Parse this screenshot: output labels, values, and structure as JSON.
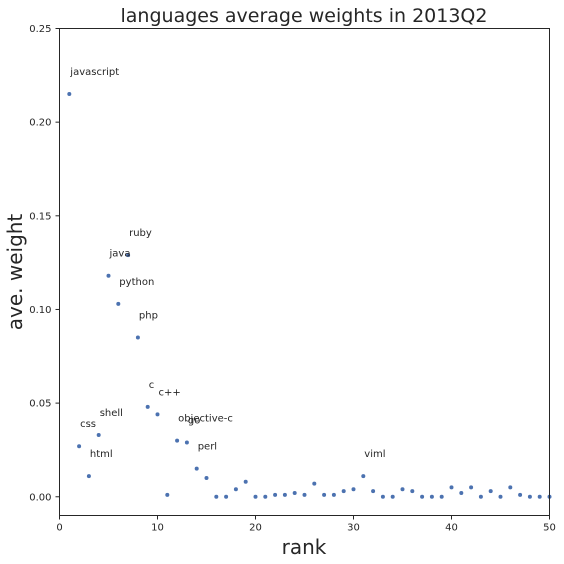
{
  "chart_data": {
    "type": "scatter",
    "title": "languages average weights in 2013Q2",
    "xlabel": "rank",
    "ylabel": "ave. weight",
    "xlim": [
      0,
      50
    ],
    "ylim": [
      -0.01,
      0.25
    ],
    "xticks": [
      0,
      10,
      20,
      30,
      40,
      50
    ],
    "xtick_labels": [
      "0",
      "10",
      "20",
      "30",
      "40",
      "50"
    ],
    "yticks": [
      0.0,
      0.05,
      0.1,
      0.15,
      0.2,
      0.25
    ],
    "ytick_labels": [
      "0.00",
      "0.05",
      "0.10",
      "0.15",
      "0.20",
      "0.25"
    ],
    "grid": false,
    "series_color": "#4c72b0",
    "points": [
      {
        "x": 1,
        "y": 0.215,
        "label": "javascript"
      },
      {
        "x": 2,
        "y": 0.027,
        "label": "css"
      },
      {
        "x": 3,
        "y": 0.011,
        "label": "html"
      },
      {
        "x": 4,
        "y": 0.033,
        "label": "shell"
      },
      {
        "x": 5,
        "y": 0.118,
        "label": "java"
      },
      {
        "x": 6,
        "y": 0.103,
        "label": "python"
      },
      {
        "x": 7,
        "y": 0.129,
        "label": "ruby"
      },
      {
        "x": 8,
        "y": 0.085,
        "label": "php"
      },
      {
        "x": 9,
        "y": 0.048,
        "label": "c"
      },
      {
        "x": 10,
        "y": 0.044,
        "label": "c++"
      },
      {
        "x": 11,
        "y": 0.001,
        "label": ""
      },
      {
        "x": 12,
        "y": 0.03,
        "label": "objective-c"
      },
      {
        "x": 13,
        "y": 0.029,
        "label": "go"
      },
      {
        "x": 14,
        "y": 0.015,
        "label": "perl"
      },
      {
        "x": 15,
        "y": 0.01,
        "label": ""
      },
      {
        "x": 16,
        "y": 0.0,
        "label": ""
      },
      {
        "x": 17,
        "y": 0.0,
        "label": ""
      },
      {
        "x": 18,
        "y": 0.004,
        "label": ""
      },
      {
        "x": 19,
        "y": 0.008,
        "label": ""
      },
      {
        "x": 20,
        "y": 0.0,
        "label": ""
      },
      {
        "x": 21,
        "y": 0.0,
        "label": ""
      },
      {
        "x": 22,
        "y": 0.001,
        "label": ""
      },
      {
        "x": 23,
        "y": 0.001,
        "label": ""
      },
      {
        "x": 24,
        "y": 0.002,
        "label": ""
      },
      {
        "x": 25,
        "y": 0.001,
        "label": ""
      },
      {
        "x": 26,
        "y": 0.007,
        "label": ""
      },
      {
        "x": 27,
        "y": 0.001,
        "label": ""
      },
      {
        "x": 28,
        "y": 0.001,
        "label": ""
      },
      {
        "x": 29,
        "y": 0.003,
        "label": ""
      },
      {
        "x": 30,
        "y": 0.004,
        "label": ""
      },
      {
        "x": 31,
        "y": 0.011,
        "label": "viml"
      },
      {
        "x": 32,
        "y": 0.003,
        "label": ""
      },
      {
        "x": 33,
        "y": 0.0,
        "label": ""
      },
      {
        "x": 34,
        "y": 0.0,
        "label": ""
      },
      {
        "x": 35,
        "y": 0.004,
        "label": ""
      },
      {
        "x": 36,
        "y": 0.003,
        "label": ""
      },
      {
        "x": 37,
        "y": 0.0,
        "label": ""
      },
      {
        "x": 38,
        "y": 0.0,
        "label": ""
      },
      {
        "x": 39,
        "y": 0.0,
        "label": ""
      },
      {
        "x": 40,
        "y": 0.005,
        "label": ""
      },
      {
        "x": 41,
        "y": 0.002,
        "label": ""
      },
      {
        "x": 42,
        "y": 0.005,
        "label": ""
      },
      {
        "x": 43,
        "y": 0.0,
        "label": ""
      },
      {
        "x": 44,
        "y": 0.003,
        "label": ""
      },
      {
        "x": 45,
        "y": 0.0,
        "label": ""
      },
      {
        "x": 46,
        "y": 0.005,
        "label": ""
      },
      {
        "x": 47,
        "y": 0.001,
        "label": ""
      },
      {
        "x": 48,
        "y": 0.0,
        "label": ""
      },
      {
        "x": 49,
        "y": 0.0,
        "label": ""
      },
      {
        "x": 50,
        "y": 0.0,
        "label": ""
      }
    ]
  }
}
